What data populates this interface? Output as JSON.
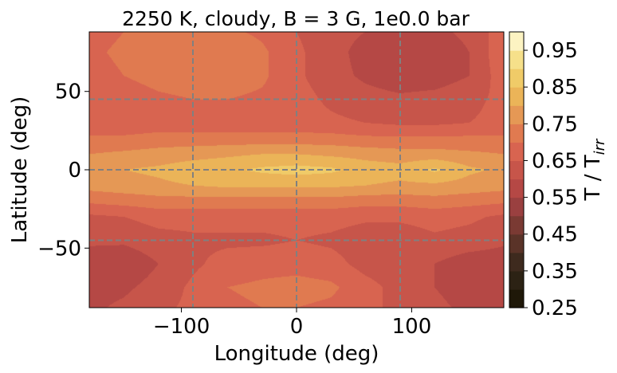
{
  "chart_data": {
    "type": "heatmap",
    "title": "2250 K, cloudy, B = 3 G, 1e0.0 bar",
    "xlabel": "Longitude (deg)",
    "ylabel": "Latitude (deg)",
    "xlim": [
      -180,
      180
    ],
    "ylim": [
      -88,
      88
    ],
    "x_ticks": [
      -100,
      0,
      100
    ],
    "x_tick_labels": [
      "−100",
      "0",
      "100"
    ],
    "y_ticks": [
      -50,
      0,
      50
    ],
    "y_tick_labels": [
      "−50",
      "0",
      "50"
    ],
    "grid": {
      "on": true,
      "style": "dashed",
      "color": "#808080",
      "x": [
        -90,
        0,
        90
      ],
      "y": [
        -45,
        0,
        45
      ]
    },
    "colorbar": {
      "label_main": "T / T",
      "label_sub": "irr",
      "range": [
        0.25,
        1.0
      ],
      "levels": [
        0.25,
        0.3,
        0.35,
        0.4,
        0.45,
        0.5,
        0.55,
        0.6,
        0.65,
        0.7,
        0.75,
        0.8,
        0.85,
        0.9,
        0.95,
        1.0
      ],
      "colors": [
        "#1f1808",
        "#2c2214",
        "#3e2a1e",
        "#5a3328",
        "#7a3a33",
        "#9a4040",
        "#b54845",
        "#c7554a",
        "#d86450",
        "#e07a50",
        "#e59855",
        "#ebb458",
        "#f0cb68",
        "#f6e08a",
        "#fcf3c2"
      ],
      "ticks": [
        0.25,
        0.35,
        0.45,
        0.55,
        0.65,
        0.75,
        0.85,
        0.95
      ],
      "tick_labels": [
        "0.25",
        "0.35",
        "0.45",
        "0.55",
        "0.65",
        "0.75",
        "0.85",
        "0.95"
      ]
    },
    "field": {
      "units": "T / T_irr",
      "lon": [
        -180,
        -150,
        -120,
        -90,
        -60,
        -30,
        0,
        30,
        60,
        90,
        120,
        150,
        180
      ],
      "lat": [
        -88,
        -75,
        -60,
        -45,
        -30,
        -20,
        -10,
        0,
        10,
        20,
        30,
        45,
        60,
        75,
        88
      ],
      "values": [
        [
          0.59,
          0.61,
          0.64,
          0.66,
          0.69,
          0.7,
          0.7,
          0.69,
          0.66,
          0.64,
          0.61,
          0.59,
          0.59
        ],
        [
          0.58,
          0.59,
          0.62,
          0.66,
          0.7,
          0.71,
          0.72,
          0.71,
          0.67,
          0.63,
          0.6,
          0.58,
          0.58
        ],
        [
          0.57,
          0.56,
          0.6,
          0.64,
          0.67,
          0.68,
          0.68,
          0.67,
          0.63,
          0.61,
          0.6,
          0.57,
          0.57
        ],
        [
          0.61,
          0.61,
          0.63,
          0.64,
          0.64,
          0.64,
          0.65,
          0.64,
          0.62,
          0.62,
          0.64,
          0.63,
          0.61
        ],
        [
          0.64,
          0.65,
          0.67,
          0.67,
          0.67,
          0.67,
          0.67,
          0.67,
          0.66,
          0.66,
          0.67,
          0.66,
          0.64
        ],
        [
          0.71,
          0.72,
          0.73,
          0.73,
          0.73,
          0.73,
          0.73,
          0.73,
          0.72,
          0.72,
          0.73,
          0.72,
          0.71
        ],
        [
          0.77,
          0.78,
          0.79,
          0.8,
          0.81,
          0.81,
          0.81,
          0.81,
          0.8,
          0.79,
          0.79,
          0.78,
          0.77
        ],
        [
          0.79,
          0.8,
          0.81,
          0.83,
          0.84,
          0.86,
          0.87,
          0.86,
          0.83,
          0.82,
          0.86,
          0.81,
          0.79
        ],
        [
          0.75,
          0.76,
          0.77,
          0.78,
          0.79,
          0.8,
          0.8,
          0.79,
          0.78,
          0.77,
          0.77,
          0.76,
          0.75
        ],
        [
          0.71,
          0.71,
          0.72,
          0.72,
          0.72,
          0.72,
          0.72,
          0.72,
          0.71,
          0.71,
          0.71,
          0.71,
          0.71
        ],
        [
          0.66,
          0.66,
          0.67,
          0.67,
          0.67,
          0.67,
          0.67,
          0.66,
          0.65,
          0.64,
          0.64,
          0.65,
          0.66
        ],
        [
          0.66,
          0.67,
          0.69,
          0.7,
          0.7,
          0.69,
          0.67,
          0.64,
          0.62,
          0.61,
          0.62,
          0.64,
          0.66
        ],
        [
          0.68,
          0.7,
          0.72,
          0.73,
          0.73,
          0.71,
          0.66,
          0.62,
          0.59,
          0.57,
          0.57,
          0.6,
          0.68
        ],
        [
          0.69,
          0.71,
          0.73,
          0.74,
          0.74,
          0.71,
          0.66,
          0.62,
          0.58,
          0.57,
          0.57,
          0.6,
          0.69
        ],
        [
          0.68,
          0.7,
          0.72,
          0.72,
          0.71,
          0.69,
          0.65,
          0.62,
          0.6,
          0.59,
          0.59,
          0.61,
          0.68
        ]
      ]
    }
  }
}
